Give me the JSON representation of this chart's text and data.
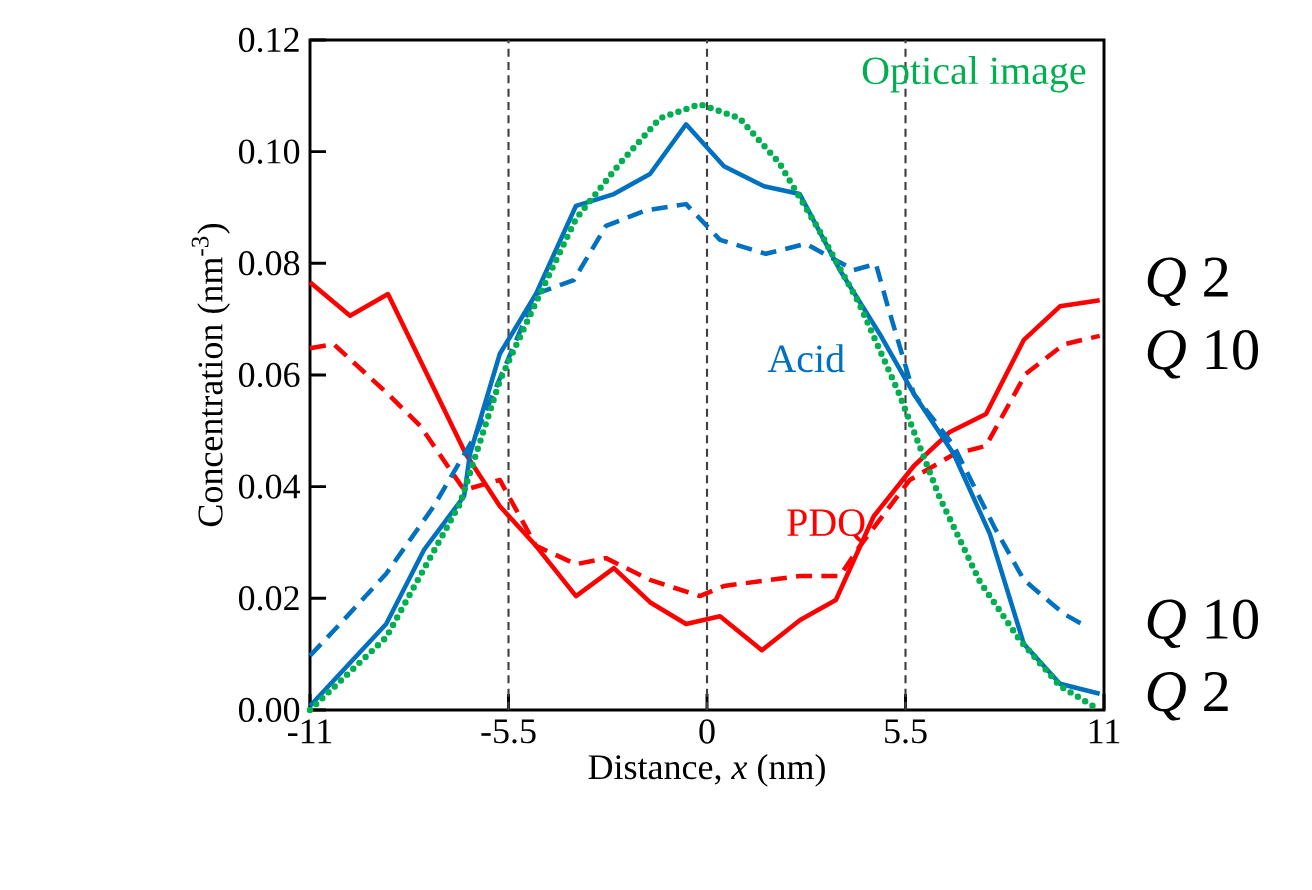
{
  "chart_data": {
    "type": "line",
    "xlabel": "Distance, *x* (nm)",
    "ylabel": "Concentration (nm$^{-3}$)",
    "xlim": [
      -11,
      11
    ],
    "ylim": [
      0,
      0.12
    ],
    "xticks": [
      -11,
      -5.5,
      0,
      5.5,
      11
    ],
    "yticks": [
      {
        "value": 0,
        "label": "0.00"
      },
      {
        "value": 0.02,
        "label": "0.02"
      },
      {
        "value": 0.04,
        "label": "0.04"
      },
      {
        "value": 0.06,
        "label": "0.06"
      },
      {
        "value": 0.08,
        "label": "0.08"
      },
      {
        "value": 0.1,
        "label": "0.10"
      },
      {
        "value": 0.12,
        "label": "0.12"
      }
    ],
    "grid": false,
    "marker": "none",
    "series": [
      {
        "name": "*Q* 2",
        "color": "#ff0000",
        "line_style": "solid",
        "x": [
          -11,
          -9.89,
          -8.84,
          -6.68,
          -5.74,
          -4.74,
          -3.63,
          -2.58,
          -1.58,
          -0.58,
          0.36,
          1.52,
          2.58,
          3.57,
          4.62,
          5.73,
          6.73,
          7.73,
          8.78,
          9.78,
          10.88
        ],
        "values": [
          0.0766,
          0.0706,
          0.0745,
          0.0458,
          0.0365,
          0.0294,
          0.0204,
          0.0254,
          0.0193,
          0.0154,
          0.0168,
          0.0107,
          0.0161,
          0.0197,
          0.0347,
          0.0437,
          0.0498,
          0.053,
          0.0663,
          0.0723,
          0.0734
        ]
      },
      {
        "name": "*Q* 10",
        "color": "#ff0000",
        "line_style": "dashed",
        "x": [
          -11,
          -10.34,
          -8.84,
          -7.95,
          -6.73,
          -5.74,
          -4.74,
          -3.63,
          -2.8,
          -1.58,
          -0.2,
          0.47,
          2.57,
          3.68,
          4.24,
          5.62,
          6.84,
          7.73,
          8.83,
          9.89,
          10.88
        ],
        "values": [
          0.0648,
          0.0655,
          0.0566,
          0.0509,
          0.0394,
          0.0412,
          0.0294,
          0.0261,
          0.0272,
          0.0233,
          0.0204,
          0.0222,
          0.024,
          0.024,
          0.0294,
          0.0412,
          0.0458,
          0.0473,
          0.0602,
          0.0655,
          0.067
        ]
      },
      {
        "name": "*Q* 10",
        "color": "#0070c0",
        "line_style": "dashed",
        "x": [
          -11,
          -10.17,
          -8.89,
          -7.57,
          -6.4,
          -4.74,
          -3.69,
          -2.8,
          -1.69,
          -0.58,
          0.36,
          1.63,
          2.74,
          4.07,
          4.68,
          4.96,
          5.73,
          6.84,
          7.95,
          8.78,
          9.89,
          10.5
        ],
        "values": [
          0.0097,
          0.0154,
          0.0244,
          0.0365,
          0.0494,
          0.0745,
          0.077,
          0.0867,
          0.0895,
          0.0906,
          0.0842,
          0.0817,
          0.0835,
          0.0788,
          0.0799,
          0.0734,
          0.0566,
          0.0473,
          0.0329,
          0.0233,
          0.0172,
          0.015
        ]
      },
      {
        "name": "*Q* 2",
        "color": "#0070c0",
        "line_style": "solid",
        "x": [
          -11,
          -8.89,
          -7.84,
          -6.73,
          -6.57,
          -5.74,
          -4.74,
          -3.63,
          -2.58,
          -1.58,
          -0.58,
          0.47,
          1.58,
          2.57,
          3.68,
          4.79,
          5.73,
          6.84,
          7.84,
          8.78,
          9.78,
          10.88
        ],
        "values": [
          0.0007,
          0.0154,
          0.0287,
          0.0383,
          0.0458,
          0.0638,
          0.0745,
          0.0903,
          0.0924,
          0.096,
          0.1049,
          0.0974,
          0.0938,
          0.0924,
          0.0788,
          0.0673,
          0.0566,
          0.0458,
          0.0315,
          0.0118,
          0.0047,
          0.0029
        ]
      },
      {
        "name": "Optical image",
        "color": "#00b050",
        "line_style": "dotted",
        "x": [
          -11,
          -8.89,
          -6.84,
          -5.74,
          -4.74,
          -3.63,
          -2.4,
          -1.3,
          -0.2,
          0.9,
          2.0,
          3.1,
          4.2,
          5.3,
          6.45,
          7.56,
          8.67,
          9.78,
          10.88
        ],
        "values": [
          0,
          0.013,
          0.037,
          0.059,
          0.073,
          0.088,
          0.098,
          0.106,
          0.1085,
          0.106,
          0.098,
          0.086,
          0.073,
          0.057,
          0.038,
          0.023,
          0.0125,
          0.0043,
          0
        ]
      }
    ],
    "ref_lines": [
      {
        "axis": "x",
        "value": -5.5,
        "color": "#404040",
        "line_style": "dashed"
      },
      {
        "axis": "x",
        "value": 0,
        "color": "#404040",
        "line_style": "dashed"
      },
      {
        "axis": "x",
        "value": 5.5,
        "color": "#404040",
        "line_style": "dashed"
      }
    ],
    "annotations": [
      "Acid",
      "PDQ"
    ]
  }
}
